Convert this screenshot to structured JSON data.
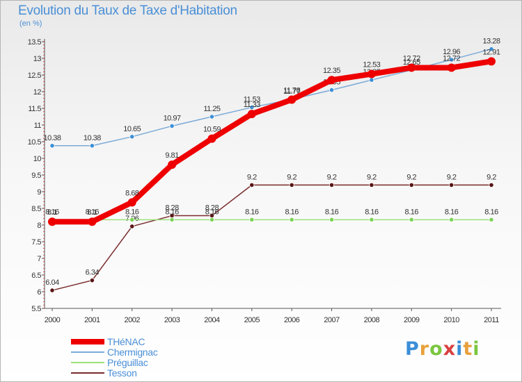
{
  "title": "Evolution du Taux de Taxe d'Habitation",
  "unit": "(en %)",
  "colors": {
    "title": "#4a8fd6",
    "axis": "#555555",
    "tick_mark": "#cc0000"
  },
  "chart_data": {
    "type": "line",
    "title": "Evolution du Taux de Taxe d'Habitation",
    "ylabel": "(en %)",
    "xlabel": "",
    "ylim": [
      5.5,
      13.5
    ],
    "yticks": [
      "5.5",
      "6",
      "6.5",
      "7",
      "7.5",
      "8",
      "8.5",
      "9",
      "9.5",
      "10",
      "10.5",
      "11",
      "11.5",
      "12",
      "12.5",
      "13",
      "13.5"
    ],
    "categories": [
      "2000",
      "2001",
      "2002",
      "2003",
      "2004",
      "2005",
      "2006",
      "2007",
      "2008",
      "2009",
      "2010",
      "2011"
    ],
    "grid": false,
    "legend_position": "bottom-left",
    "series": [
      {
        "name": "Tesson",
        "color": "#7a2b2b",
        "marker": "#5a1515",
        "values": [
          6.04,
          6.34,
          7.96,
          8.28,
          8.28,
          9.2,
          9.2,
          9.2,
          9.2,
          9.2,
          9.2,
          9.2
        ],
        "labels": [
          "6.04",
          "6.34",
          "7.96",
          "8.28",
          "8.28",
          "9.2",
          "9.2",
          "9.2",
          "9.2",
          "9.2",
          "9.2",
          "9.2"
        ]
      },
      {
        "name": "Préguillac",
        "color": "#9be07a",
        "marker": "#7dd35a",
        "values": [
          8.16,
          8.16,
          8.16,
          8.16,
          8.16,
          8.16,
          8.16,
          8.16,
          8.16,
          8.16,
          8.16,
          8.16
        ],
        "labels": [
          "8.16",
          "8.16",
          "8.16",
          "8.16",
          "8.16",
          "8.16",
          "8.16",
          "8.16",
          "8.16",
          "8.16",
          "8.16",
          "8.16"
        ]
      },
      {
        "name": "Chermignac",
        "color": "#7aaad8",
        "marker": "#3d8fd6",
        "values": [
          10.38,
          10.38,
          10.65,
          10.97,
          11.25,
          11.53,
          11.77,
          12.05,
          12.35,
          12.65,
          12.96,
          13.28
        ],
        "labels": [
          "10.38",
          "10.38",
          "10.65",
          "10.97",
          "11.25",
          "11.53",
          "11.77",
          "12.05",
          "12.35",
          "12.65",
          "12.96",
          "13.28"
        ]
      },
      {
        "name": "THéNAC",
        "color": "#ee0000",
        "marker": "#ee0000",
        "values": [
          8.1,
          8.1,
          8.68,
          9.81,
          10.59,
          11.33,
          11.76,
          12.35,
          12.53,
          12.72,
          12.72,
          12.91
        ],
        "labels": [
          "8.1",
          "8.1",
          "8.68",
          "9.81",
          "10.59",
          "11.33",
          "11.76",
          "12.35",
          "12.53",
          "12.72",
          "12.72",
          "12.91"
        ]
      }
    ]
  },
  "legend": [
    {
      "name": "THéNAC",
      "color": "#ee0000",
      "thickness": 8
    },
    {
      "name": "Chermignac",
      "color": "#7aaad8",
      "thickness": 2
    },
    {
      "name": "Préguillac",
      "color": "#9be07a",
      "thickness": 2
    },
    {
      "name": "Tesson",
      "color": "#7a2b2b",
      "thickness": 2
    }
  ],
  "logo": {
    "text": "Proxiti",
    "letters": [
      "P",
      "r",
      "o",
      "x",
      "i",
      "t",
      "i"
    ],
    "letter_colors": [
      "#3b8ed8",
      "#e8a13c",
      "#7bc63f",
      "#d94040",
      "#3b8ed8",
      "#e8a13c",
      "#7bc63f"
    ]
  }
}
